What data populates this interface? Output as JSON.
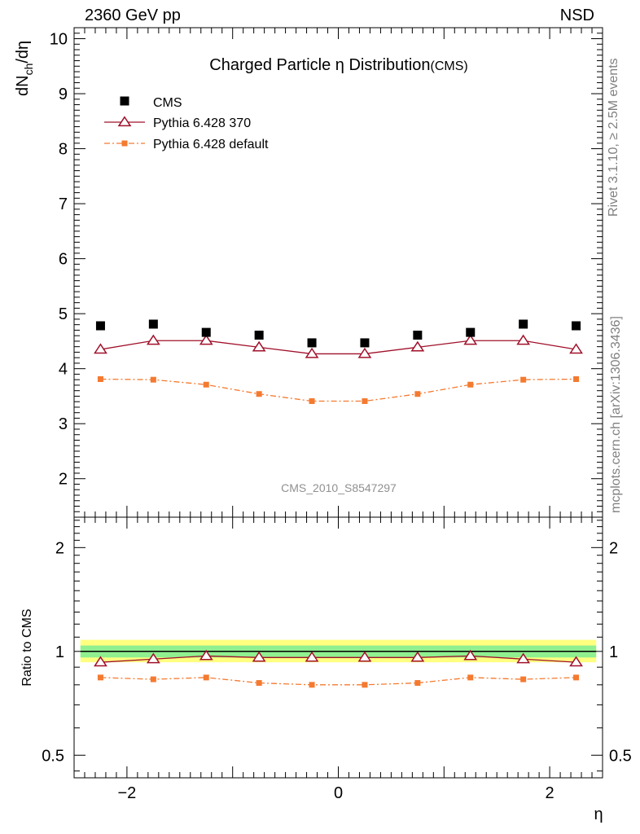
{
  "header": {
    "energy": "2360 GeV pp",
    "process": "NSD"
  },
  "side_labels": {
    "rivet": "Rivet 3.1.10, ≥ 2.5M events",
    "mcplots": "mcplots.cern.ch [arXiv:1306.3436]"
  },
  "analysis_id": "CMS_2010_S8547297",
  "colors": {
    "cms": "#000000",
    "pythia370": "#a0102a",
    "pythia_default": "#f47a30",
    "band_inner": "#90f090",
    "band_outer": "#ffff80",
    "side_text": "#808080"
  },
  "chart_data": [
    {
      "type": "scatter",
      "title": "Charged Particle η Distribution",
      "title_suffix": "(CMS)",
      "ylabel": "dN_ch/dη",
      "ylabel_parts": [
        "dN",
        "ch",
        "/dη"
      ],
      "xlim": [
        -2.5,
        2.5
      ],
      "ylim": [
        1.3,
        10.2
      ],
      "yticks": [
        2,
        3,
        4,
        5,
        6,
        7,
        8,
        9,
        10
      ],
      "ytick_labels": [
        "2",
        "3",
        "4",
        "5",
        "6",
        "7",
        "8",
        "9",
        "10"
      ],
      "legend_position": "top-left",
      "x": [
        -2.25,
        -1.75,
        -1.25,
        -0.75,
        -0.25,
        0.25,
        0.75,
        1.25,
        1.75,
        2.25
      ],
      "series": [
        {
          "name": "CMS",
          "style": "square-marker",
          "values": [
            4.78,
            4.81,
            4.66,
            4.61,
            4.47,
            4.47,
            4.61,
            4.66,
            4.81,
            4.78
          ]
        },
        {
          "name": "Pythia 6.428 370",
          "style": "open-triangle-solid-line",
          "values": [
            4.35,
            4.51,
            4.51,
            4.39,
            4.27,
            4.27,
            4.39,
            4.51,
            4.51,
            4.35
          ]
        },
        {
          "name": "Pythia 6.428 default",
          "style": "small-square-dashdot-line",
          "values": [
            3.81,
            3.8,
            3.71,
            3.54,
            3.41,
            3.41,
            3.54,
            3.71,
            3.8,
            3.81
          ]
        }
      ]
    },
    {
      "type": "line",
      "ylabel": "Ratio to CMS",
      "xlabel": "η",
      "xlim": [
        -2.5,
        2.5
      ],
      "ylim": [
        0.43,
        2.45
      ],
      "log_y": true,
      "xticks": [
        -2,
        0,
        2
      ],
      "xtick_labels": [
        "−2",
        "0",
        "2"
      ],
      "yticks": [
        0.5,
        1,
        2
      ],
      "ytick_labels": [
        "0.5",
        "1",
        "2"
      ],
      "x": [
        -2.25,
        -1.75,
        -1.25,
        -0.75,
        -0.25,
        0.25,
        0.75,
        1.25,
        1.75,
        2.25
      ],
      "bands": {
        "inner": [
          0.96,
          1.04
        ],
        "outer": [
          0.93,
          1.08
        ]
      },
      "series": [
        {
          "name": "Pythia 6.428 370",
          "values": [
            0.93,
            0.95,
            0.97,
            0.96,
            0.96,
            0.96,
            0.96,
            0.97,
            0.95,
            0.93
          ]
        },
        {
          "name": "Pythia 6.428 default",
          "values": [
            0.84,
            0.83,
            0.84,
            0.81,
            0.8,
            0.8,
            0.81,
            0.84,
            0.83,
            0.84
          ]
        }
      ]
    }
  ]
}
